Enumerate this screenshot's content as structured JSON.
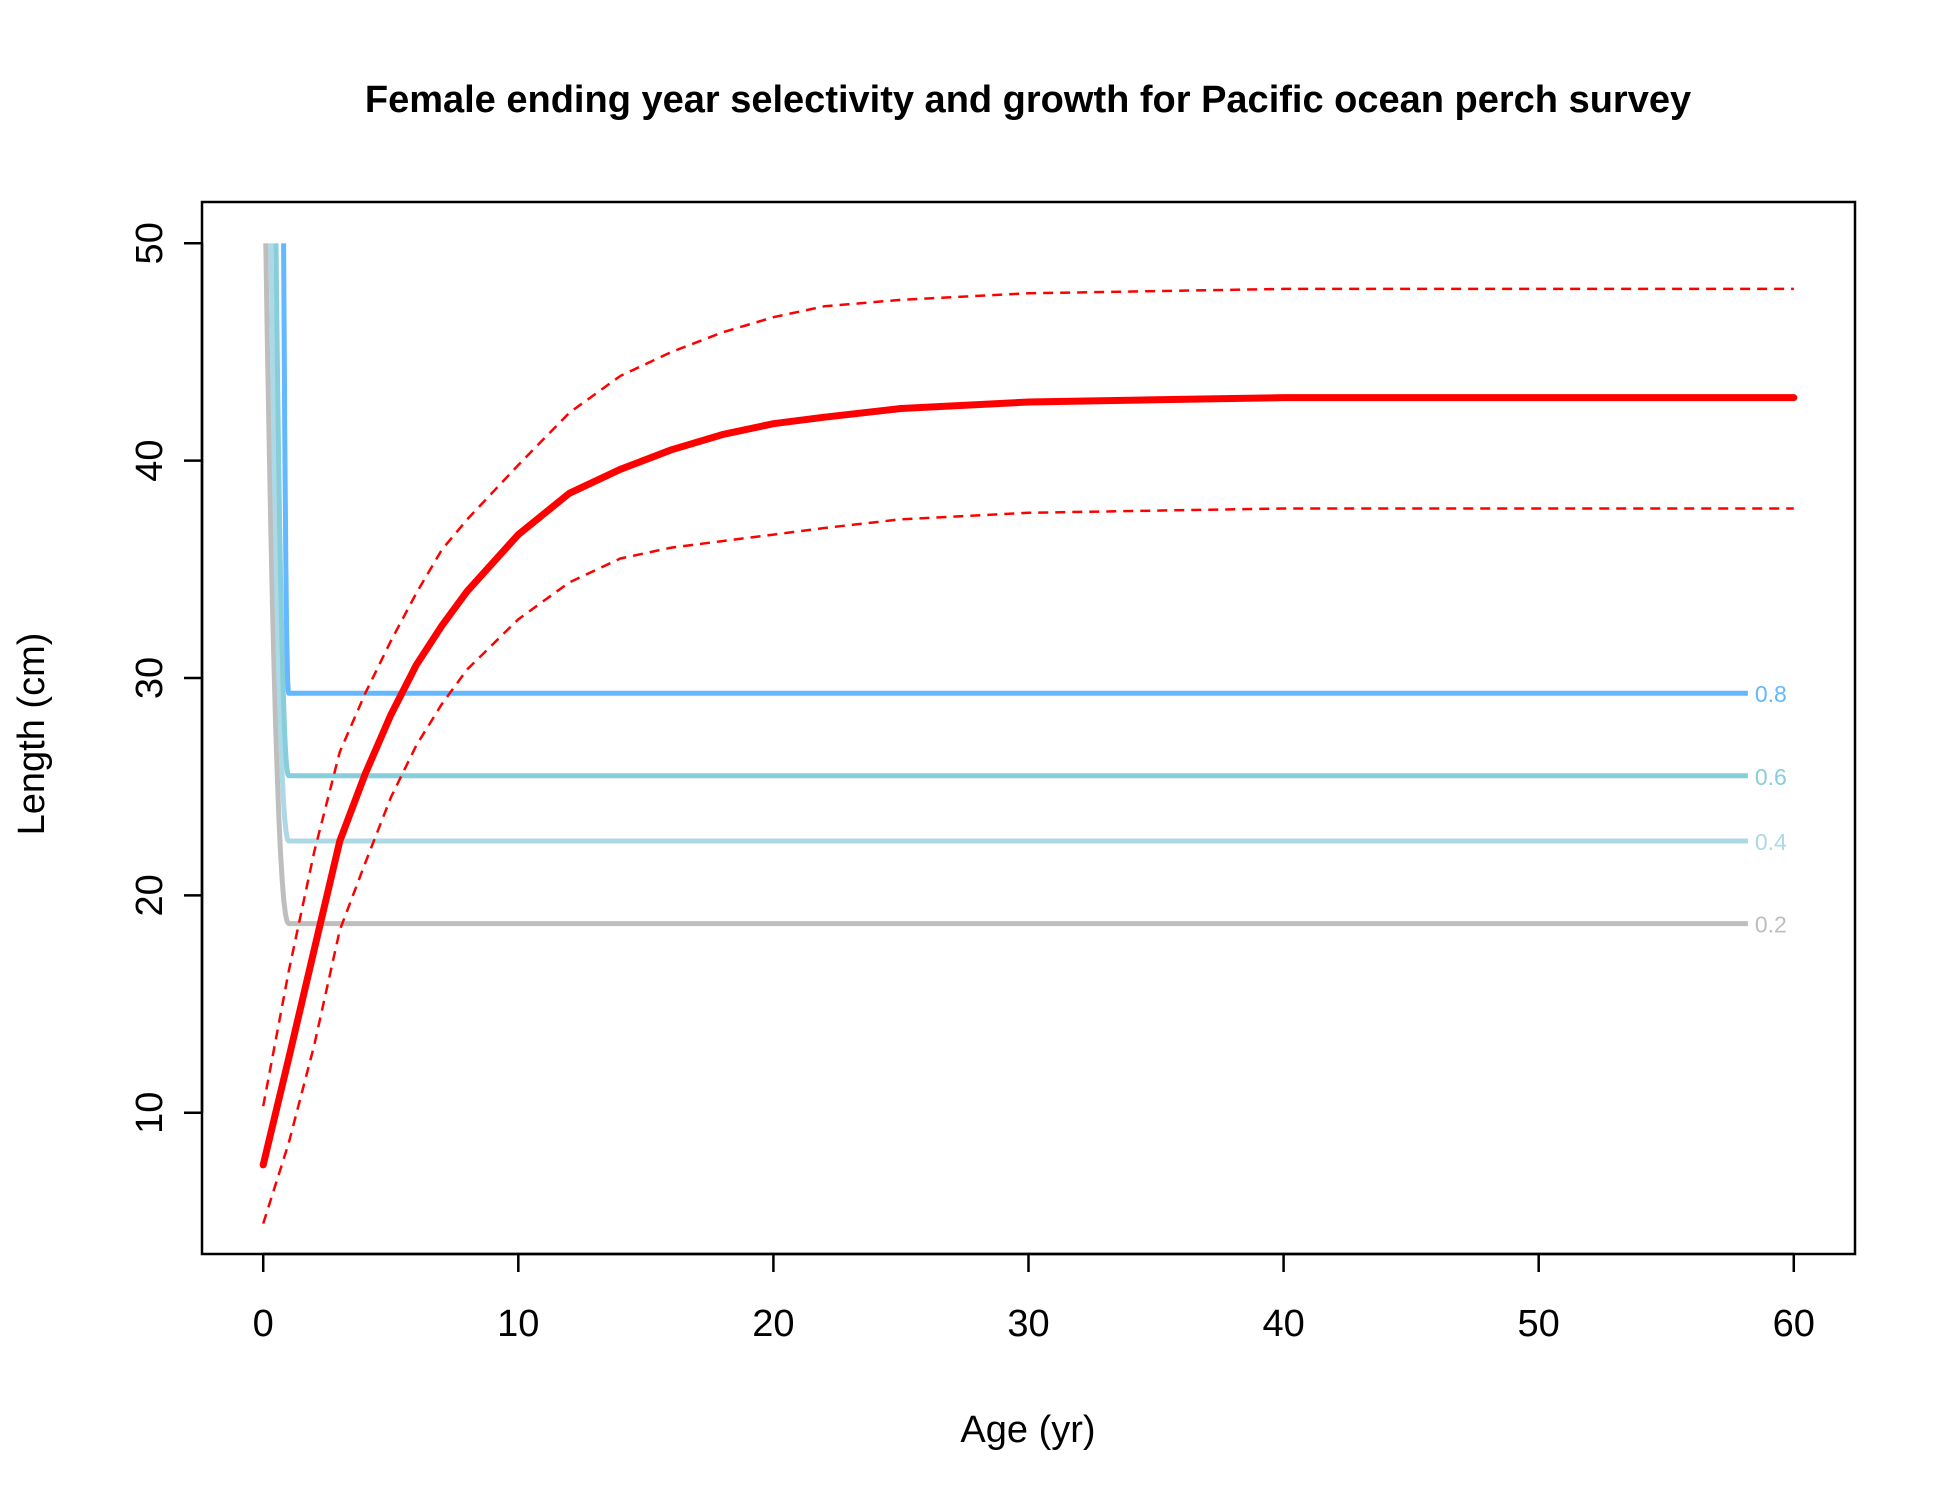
{
  "chart_data": {
    "type": "line",
    "title": "Female ending year selectivity and growth for Pacific ocean perch survey",
    "xlabel": "Age (yr)",
    "ylabel": "Length (cm)",
    "xlim": [
      -2.4,
      62.4
    ],
    "ylim": [
      3.5,
      51.9
    ],
    "xticks": [
      0,
      10,
      20,
      30,
      40,
      50,
      60
    ],
    "yticks": [
      10,
      20,
      30,
      40,
      50
    ],
    "grid": false,
    "legend": "none",
    "growth": {
      "color": "#ff0000",
      "x": [
        0,
        1,
        2,
        3,
        4,
        5,
        6,
        7,
        8,
        10,
        12,
        14,
        16,
        18,
        20,
        22,
        25,
        30,
        35,
        40,
        50,
        60
      ],
      "mean": [
        7.6,
        12.5,
        17.5,
        22.5,
        25.6,
        28.3,
        30.6,
        32.4,
        34.0,
        36.6,
        38.5,
        39.6,
        40.5,
        41.2,
        41.7,
        42.0,
        42.4,
        42.7,
        42.8,
        42.9,
        42.9,
        42.9
      ],
      "upper": [
        10.3,
        16.5,
        22.0,
        26.6,
        29.3,
        31.7,
        33.9,
        35.9,
        37.3,
        39.8,
        42.2,
        43.9,
        45.0,
        45.9,
        46.6,
        47.1,
        47.4,
        47.7,
        47.8,
        47.9,
        47.9,
        47.9
      ],
      "lower": [
        4.9,
        8.6,
        13.1,
        18.4,
        21.5,
        24.5,
        26.9,
        28.8,
        30.4,
        32.7,
        34.4,
        35.5,
        36.0,
        36.3,
        36.6,
        36.9,
        37.3,
        37.6,
        37.7,
        37.8,
        37.8,
        37.8
      ]
    },
    "selectivity_contours": [
      {
        "label": "0.2",
        "color": "#bebebe",
        "level": 18.7,
        "start_x": 0.1,
        "bend_x": 1.0,
        "end_x": 58.2
      },
      {
        "label": "0.4",
        "color": "#add8e6",
        "level": 22.5,
        "start_x": 0.3,
        "bend_x": 1.0,
        "end_x": 58.2
      },
      {
        "label": "0.6",
        "color": "#87cedb",
        "level": 25.5,
        "start_x": 0.5,
        "bend_x": 1.0,
        "end_x": 58.2
      },
      {
        "label": "0.8",
        "color": "#63b8ff",
        "level": 29.3,
        "start_x": 0.8,
        "bend_x": 1.0,
        "end_x": 58.2
      }
    ]
  }
}
